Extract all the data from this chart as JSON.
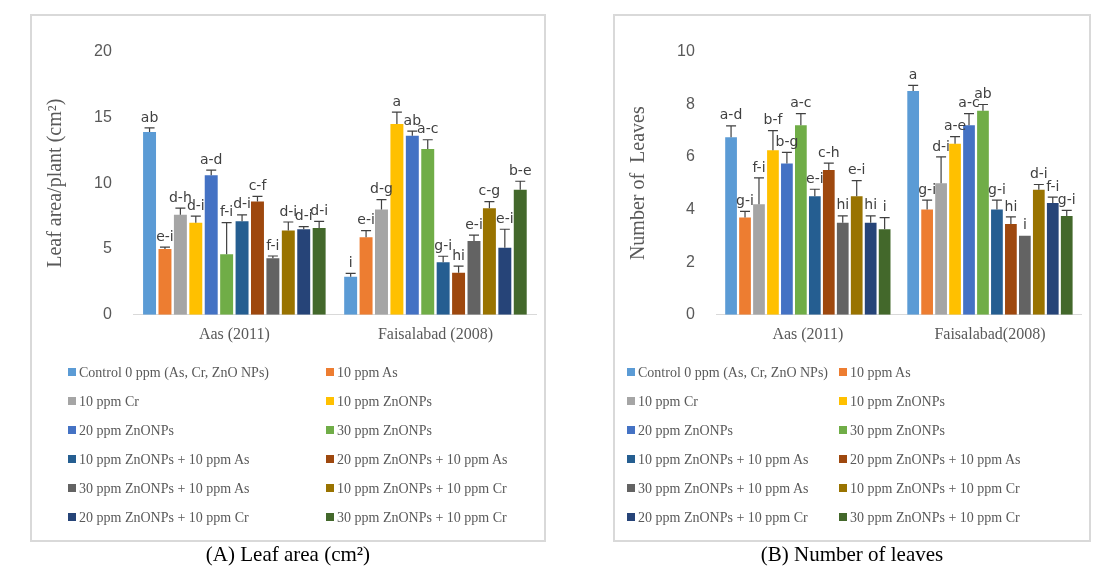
{
  "chart_data": [
    {
      "type": "bar",
      "title": "(A) Leaf area (cm²)",
      "ylabel": "Leaf area/plant (cm²)",
      "categories": [
        "Aas (2011)",
        "Faisalabad (2008)"
      ],
      "ylim": [
        0,
        20
      ],
      "yticks": [
        0,
        5,
        10,
        15,
        20
      ],
      "grid": false,
      "legend": "bottom",
      "series": [
        {
          "name": "Control 0 ppm (As, Cr, ZnO NPs)",
          "color": "#5b9bd5",
          "values": [
            13.9,
            2.9
          ],
          "errors": [
            [
              13.9,
              14.2
            ],
            [
              2.9,
              3.15
            ]
          ],
          "value_labels": [
            "ab",
            "i"
          ]
        },
        {
          "name": "10 ppm As",
          "color": "#ed7d31",
          "values": [
            5.0,
            5.9
          ],
          "errors": [
            [
              5.0,
              5.15
            ],
            [
              5.9,
              6.4
            ]
          ],
          "value_labels": [
            "e-i",
            "e-i"
          ]
        },
        {
          "name": "10 ppm Cr",
          "color": "#a5a5a5",
          "values": [
            7.6,
            8.0
          ],
          "errors": [
            [
              7.6,
              8.1
            ],
            [
              8.0,
              8.75
            ]
          ],
          "value_labels": [
            "d-h",
            "d-g"
          ]
        },
        {
          "name": "10 ppm ZnONPs",
          "color": "#ffc000",
          "values": [
            7.0,
            14.5
          ],
          "errors": [
            [
              7.0,
              7.5
            ],
            [
              14.5,
              15.4
            ]
          ],
          "value_labels": [
            "d-i",
            "a"
          ]
        },
        {
          "name": "20 ppm ZnONPs",
          "color": "#4472c4",
          "values": [
            10.6,
            13.6
          ],
          "errors": [
            [
              10.6,
              11.0
            ],
            [
              13.6,
              13.95
            ]
          ],
          "value_labels": [
            "a-d",
            "ab"
          ]
        },
        {
          "name": "30 ppm ZnONPs",
          "color": "#70ad47",
          "values": [
            4.6,
            12.6
          ],
          "errors": [
            [
              4.6,
              7.0
            ],
            [
              12.6,
              13.3
            ]
          ],
          "value_labels": [
            "f-i",
            "a-c"
          ]
        },
        {
          "name": "10 ppm ZnONPs + 10 ppm As",
          "color": "#255e91",
          "values": [
            7.1,
            4.0
          ],
          "errors": [
            [
              7.1,
              7.6
            ],
            [
              4.0,
              4.45
            ]
          ],
          "value_labels": [
            "d-i",
            "g-i"
          ]
        },
        {
          "name": "20 ppm ZnONPs + 10 ppm As",
          "color": "#9e480e",
          "values": [
            8.6,
            3.2
          ],
          "errors": [
            [
              8.6,
              9.0
            ],
            [
              3.2,
              3.7
            ]
          ],
          "value_labels": [
            "c-f",
            "hi"
          ]
        },
        {
          "name": "30 ppm ZnONPs + 10 ppm As",
          "color": "#636363",
          "values": [
            4.3,
            5.6
          ],
          "errors": [
            [
              4.3,
              4.47
            ],
            [
              5.6,
              6.05
            ]
          ],
          "value_labels": [
            "f-i",
            "e-i"
          ]
        },
        {
          "name": "10 ppm ZnONPs + 10 ppm Cr",
          "color": "#997300",
          "values": [
            6.4,
            8.1
          ],
          "errors": [
            [
              6.4,
              7.05
            ],
            [
              8.1,
              8.6
            ]
          ],
          "value_labels": [
            "d-i",
            "c-g"
          ]
        },
        {
          "name": "20 ppm ZnONPs + 10 ppm Cr",
          "color": "#264478",
          "values": [
            6.5,
            5.1
          ],
          "errors": [
            [
              6.5,
              6.7
            ],
            [
              5.1,
              6.5
            ]
          ],
          "value_labels": [
            "d-i",
            "e-i"
          ]
        },
        {
          "name": "30 ppm ZnONPs + 10 ppm Cr",
          "color": "#43682b",
          "values": [
            6.6,
            9.5
          ],
          "errors": [
            [
              6.6,
              7.1
            ],
            [
              9.5,
              10.15
            ]
          ],
          "value_labels": [
            "d-i",
            "b-e"
          ]
        }
      ]
    },
    {
      "type": "bar",
      "title": "(B) Number of leaves",
      "ylabel": "Number of  Leaves",
      "categories": [
        "Aas (2011)",
        "Faisalabad(2008)"
      ],
      "ylim": [
        0,
        10
      ],
      "yticks": [
        0,
        2,
        4,
        6,
        8,
        10
      ],
      "grid": false,
      "legend": "bottom",
      "series": [
        {
          "name": "Control 0 ppm (As, Cr, ZnO NPs)",
          "color": "#5b9bd5",
          "values": [
            6.75,
            8.5
          ],
          "errors": [
            [
              6.75,
              7.18
            ],
            [
              8.5,
              8.72
            ]
          ],
          "value_labels": [
            "a-d",
            "a"
          ]
        },
        {
          "name": "10 ppm As",
          "color": "#ed7d31",
          "values": [
            3.7,
            4.0
          ],
          "errors": [
            [
              3.7,
              3.93
            ],
            [
              4.0,
              4.36
            ]
          ],
          "value_labels": [
            "g-i",
            "g-i"
          ]
        },
        {
          "name": "10 ppm Cr",
          "color": "#a5a5a5",
          "values": [
            4.2,
            5.0
          ],
          "errors": [
            [
              4.2,
              5.2
            ],
            [
              5.0,
              6.0
            ]
          ],
          "value_labels": [
            "f-i",
            "d-i"
          ]
        },
        {
          "name": "10 ppm ZnONPs",
          "color": "#ffc000",
          "values": [
            6.25,
            6.5
          ],
          "errors": [
            [
              6.25,
              7.0
            ],
            [
              6.5,
              6.77
            ]
          ],
          "value_labels": [
            "b-f",
            "a-e"
          ]
        },
        {
          "name": "20 ppm ZnONPs",
          "color": "#4472c4",
          "values": [
            5.75,
            7.2
          ],
          "errors": [
            [
              5.75,
              6.17
            ],
            [
              7.2,
              7.64
            ]
          ],
          "value_labels": [
            "b-g",
            "a-c"
          ]
        },
        {
          "name": "30 ppm ZnONPs",
          "color": "#70ad47",
          "values": [
            7.2,
            7.75
          ],
          "errors": [
            [
              7.2,
              7.64
            ],
            [
              7.75,
              7.99
            ]
          ],
          "value_labels": [
            "a-c",
            "ab"
          ]
        },
        {
          "name": "10 ppm ZnONPs + 10 ppm As",
          "color": "#255e91",
          "values": [
            4.5,
            4.0
          ],
          "errors": [
            [
              4.5,
              4.77
            ],
            [
              4.0,
              4.36
            ]
          ],
          "value_labels": [
            "e-i",
            "g-i"
          ]
        },
        {
          "name": "20 ppm ZnONPs + 10 ppm As",
          "color": "#9e480e",
          "values": [
            5.5,
            3.45
          ],
          "errors": [
            [
              5.5,
              5.76
            ],
            [
              3.45,
              3.72
            ]
          ],
          "value_labels": [
            "c-h",
            "hi"
          ]
        },
        {
          "name": "30 ppm ZnONPs + 10 ppm As",
          "color": "#636363",
          "values": [
            3.5,
            3.0
          ],
          "errors": [
            [
              3.5,
              3.76
            ],
            null
          ],
          "value_labels": [
            "hi",
            "i"
          ]
        },
        {
          "name": "10 ppm ZnONPs + 10 ppm Cr",
          "color": "#997300",
          "values": [
            4.5,
            4.75
          ],
          "errors": [
            [
              4.5,
              5.1
            ],
            [
              4.75,
              4.95
            ]
          ],
          "value_labels": [
            "e-i",
            "d-i"
          ]
        },
        {
          "name": "20 ppm ZnONPs + 10 ppm Cr",
          "color": "#264478",
          "values": [
            3.5,
            4.25
          ],
          "errors": [
            [
              3.5,
              3.76
            ],
            [
              4.25,
              4.47
            ]
          ],
          "value_labels": [
            "hi",
            "f-i"
          ]
        },
        {
          "name": "30 ppm ZnONPs + 10 ppm Cr",
          "color": "#43682b",
          "values": [
            3.25,
            3.75
          ],
          "errors": [
            [
              3.25,
              3.69
            ],
            [
              3.75,
              3.97
            ]
          ],
          "value_labels": [
            "i",
            "g-i"
          ]
        }
      ]
    }
  ]
}
